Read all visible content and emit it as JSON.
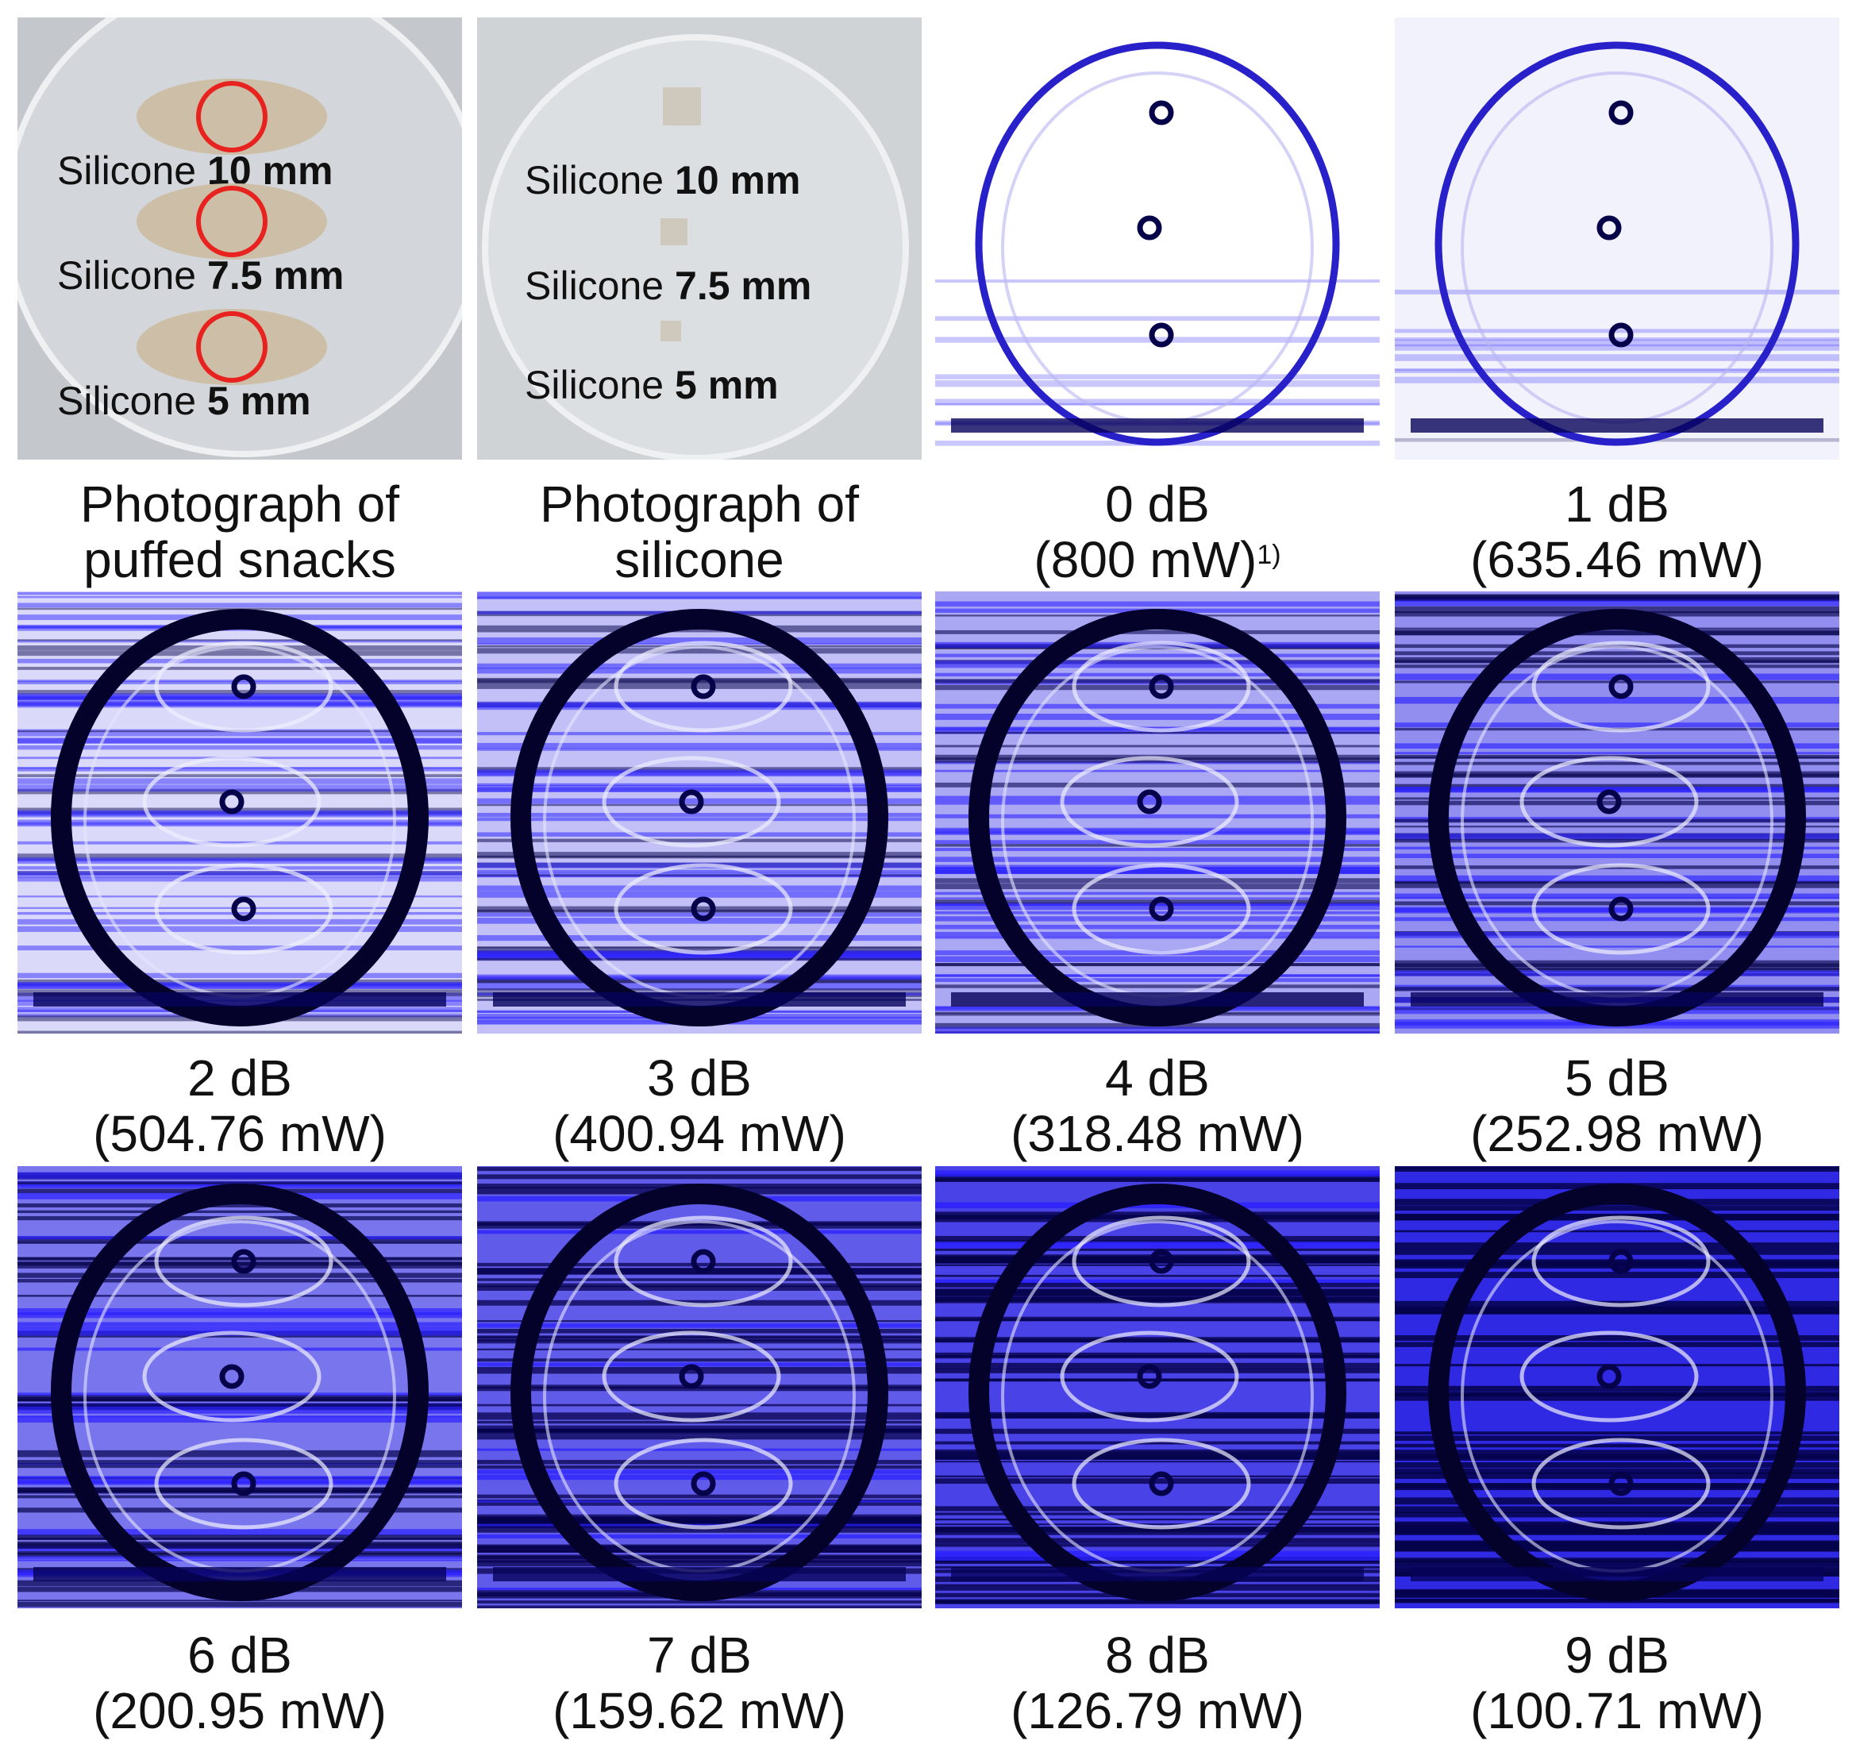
{
  "photographs": [
    {
      "labels": [
        {
          "name": "Silicone",
          "size": "10 mm"
        },
        {
          "name": "Silicone",
          "size": "7.5 mm"
        },
        {
          "name": "Silicone",
          "size": "5 mm"
        }
      ],
      "caption": [
        "Photograph of",
        "puffed snacks"
      ]
    },
    {
      "labels": [
        {
          "name": "Silicone",
          "size": "10 mm"
        },
        {
          "name": "Silicone",
          "size": "7.5 mm"
        },
        {
          "name": "Silicone",
          "size": "5 mm"
        }
      ],
      "caption": [
        "Photograph of",
        "silicone"
      ]
    }
  ],
  "scans": [
    {
      "caption": [
        "0 dB",
        "(800 mW)"
      ],
      "note": "1)"
    },
    {
      "caption": [
        "1 dB",
        "(635.46 mW)"
      ]
    },
    {
      "caption": [
        "2 dB",
        "(504.76 mW)"
      ]
    },
    {
      "caption": [
        "3 dB",
        "(400.94 mW)"
      ]
    },
    {
      "caption": [
        "4 dB",
        "(318.48 mW)"
      ]
    },
    {
      "caption": [
        "5 dB",
        "(252.98 mW)"
      ]
    },
    {
      "caption": [
        "6 dB",
        "(200.95 mW)"
      ]
    },
    {
      "caption": [
        "7 dB",
        "(159.62 mW)"
      ]
    },
    {
      "caption": [
        "8 dB",
        "(126.79 mW)"
      ]
    },
    {
      "caption": [
        "9 dB",
        "(100.71 mW)"
      ]
    }
  ]
}
